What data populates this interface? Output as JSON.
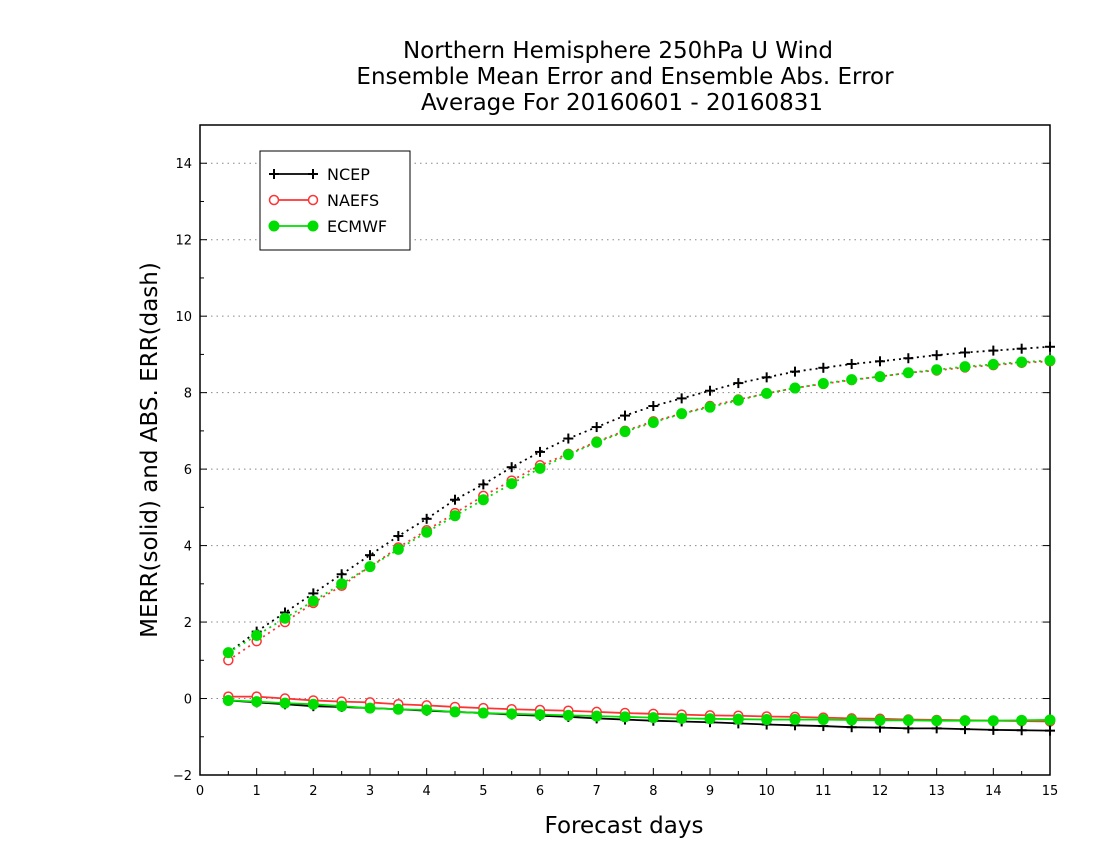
{
  "chart_data": {
    "type": "line",
    "title_lines": [
      "Northern Hemisphere 250hPa U Wind",
      "Ensemble Mean Error and Ensemble Abs. Error",
      "Average For 20160601 - 20160831"
    ],
    "xlabel": "Forecast days",
    "ylabel": "MERR(solid) and ABS. ERR(dash)",
    "xlim": [
      0,
      15
    ],
    "ylim": [
      -2,
      15
    ],
    "x_ticks": [
      "0",
      "1",
      "2",
      "3",
      "4",
      "5",
      "6",
      "7",
      "8",
      "9",
      "10",
      "11",
      "12",
      "13",
      "14",
      "15"
    ],
    "y_ticks": [
      "−2",
      "0",
      "2",
      "4",
      "6",
      "8",
      "10",
      "12",
      "14"
    ],
    "grid": "horizontal dotted",
    "legend_position": "top-left",
    "x": [
      0.5,
      1,
      1.5,
      2,
      2.5,
      3,
      3.5,
      4,
      4.5,
      5,
      5.5,
      6,
      6.5,
      7,
      7.5,
      8,
      8.5,
      9,
      9.5,
      10,
      10.5,
      11,
      11.5,
      12,
      12.5,
      13,
      13.5,
      14,
      14.5,
      15
    ],
    "series": [
      {
        "name": "NCEP",
        "color": "#000000",
        "marker": "plus",
        "abs_err": [
          1.2,
          1.75,
          2.25,
          2.75,
          3.25,
          3.75,
          4.25,
          4.7,
          5.2,
          5.6,
          6.05,
          6.45,
          6.8,
          7.1,
          7.4,
          7.65,
          7.85,
          8.05,
          8.25,
          8.4,
          8.55,
          8.65,
          8.75,
          8.82,
          8.9,
          8.98,
          9.05,
          9.1,
          9.15,
          9.2
        ],
        "mean_err": [
          -0.05,
          -0.1,
          -0.15,
          -0.2,
          -0.22,
          -0.25,
          -0.28,
          -0.32,
          -0.35,
          -0.38,
          -0.42,
          -0.45,
          -0.48,
          -0.52,
          -0.55,
          -0.58,
          -0.6,
          -0.62,
          -0.65,
          -0.68,
          -0.7,
          -0.72,
          -0.75,
          -0.76,
          -0.78,
          -0.78,
          -0.8,
          -0.82,
          -0.83,
          -0.84
        ]
      },
      {
        "name": "NAEFS",
        "color": "#ff3333",
        "marker": "open-circle",
        "abs_err": [
          1.0,
          1.5,
          2.0,
          2.5,
          2.95,
          3.45,
          3.95,
          4.4,
          4.85,
          5.3,
          5.7,
          6.1,
          6.4,
          6.72,
          7.0,
          7.25,
          7.45,
          7.65,
          7.82,
          7.98,
          8.12,
          8.23,
          8.33,
          8.42,
          8.52,
          8.58,
          8.66,
          8.72,
          8.78,
          8.82
        ],
        "mean_err": [
          0.05,
          0.05,
          0.0,
          -0.05,
          -0.08,
          -0.1,
          -0.15,
          -0.18,
          -0.22,
          -0.25,
          -0.28,
          -0.3,
          -0.32,
          -0.35,
          -0.38,
          -0.4,
          -0.42,
          -0.44,
          -0.45,
          -0.47,
          -0.48,
          -0.5,
          -0.52,
          -0.53,
          -0.55,
          -0.56,
          -0.57,
          -0.58,
          -0.59,
          -0.6
        ]
      },
      {
        "name": "ECMWF",
        "color": "#00dd00",
        "marker": "filled-circle",
        "abs_err": [
          1.2,
          1.65,
          2.1,
          2.55,
          3.0,
          3.45,
          3.9,
          4.35,
          4.78,
          5.2,
          5.62,
          6.02,
          6.38,
          6.7,
          6.98,
          7.22,
          7.45,
          7.62,
          7.8,
          7.98,
          8.12,
          8.24,
          8.34,
          8.42,
          8.52,
          8.6,
          8.68,
          8.74,
          8.8,
          8.84
        ],
        "mean_err": [
          -0.05,
          -0.08,
          -0.12,
          -0.15,
          -0.2,
          -0.25,
          -0.28,
          -0.3,
          -0.35,
          -0.38,
          -0.4,
          -0.42,
          -0.44,
          -0.46,
          -0.48,
          -0.5,
          -0.52,
          -0.53,
          -0.54,
          -0.55,
          -0.55,
          -0.55,
          -0.56,
          -0.57,
          -0.57,
          -0.58,
          -0.58,
          -0.58,
          -0.57,
          -0.56
        ]
      }
    ]
  }
}
